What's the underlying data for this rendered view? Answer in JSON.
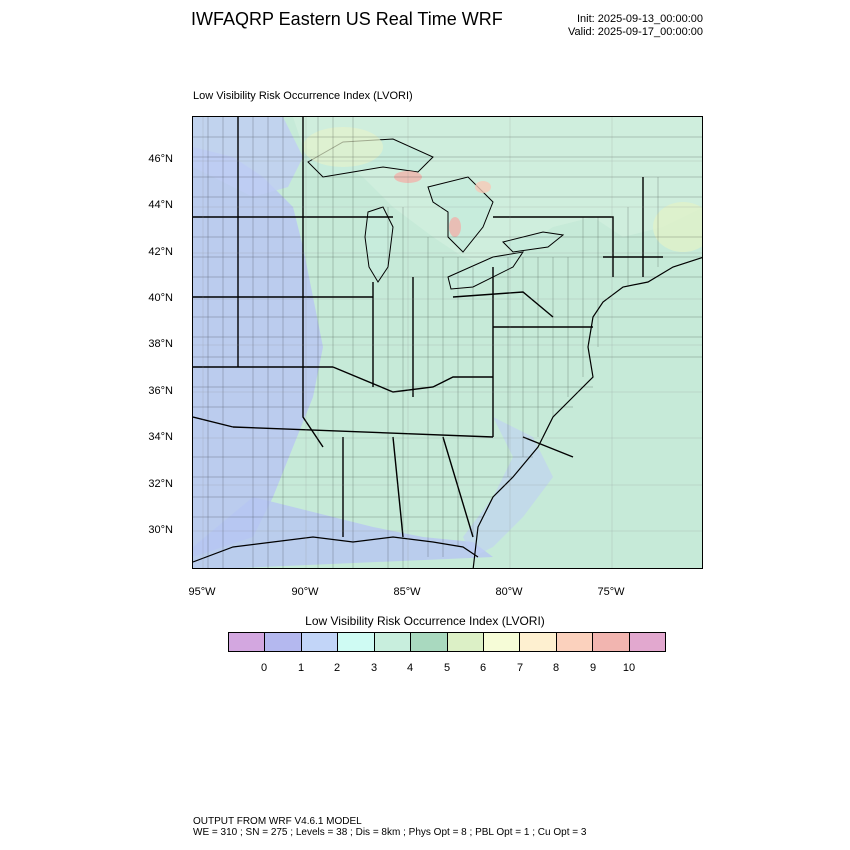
{
  "header": {
    "title": "IWFAQRP Eastern US Real Time WRF",
    "init_label": "Init: 2025-09-13_00:00:00",
    "valid_label": "Valid: 2025-09-17_00:00:00"
  },
  "panel": {
    "title": "Low Visibility Risk Occurrence Index   (LVORI)"
  },
  "map": {
    "lat_labels": [
      "46°N",
      "44°N",
      "42°N",
      "40°N",
      "38°N",
      "36°N",
      "34°N",
      "32°N",
      "30°N"
    ],
    "lon_labels": [
      "95°W",
      "90°W",
      "85°W",
      "80°W",
      "75°W"
    ],
    "colors": {
      "ocean": "#c8ead9",
      "land": "#c5ecdd",
      "lakes": "#c9eede",
      "low_risk": "#b9c7f2",
      "high_risk": "#f0b3ab",
      "mid_risk": "#e0f1c9",
      "canada": "#cfeedd"
    }
  },
  "legend": {
    "title": "Low Visibility Risk Occurrence Index  (LVORI)",
    "ticks": [
      "0",
      "1",
      "2",
      "3",
      "4",
      "5",
      "6",
      "7",
      "8",
      "9",
      "10"
    ],
    "colors": [
      "#d3a7e0",
      "#b4b8ef",
      "#c2d5f8",
      "#cffbf3",
      "#c8eedd",
      "#a9d9bf",
      "#dcf0c6",
      "#f6fcd7",
      "#fef0d0",
      "#fbd1bd",
      "#f2b5b0",
      "#e2a8cf"
    ]
  },
  "footer": {
    "line1": "OUTPUT FROM WRF V4.6.1 MODEL",
    "line2": "WE = 310 ; SN = 275 ; Levels = 38 ; Dis = 8km ; Phys Opt = 8 ; PBL Opt = 1 ; Cu Opt = 3"
  }
}
